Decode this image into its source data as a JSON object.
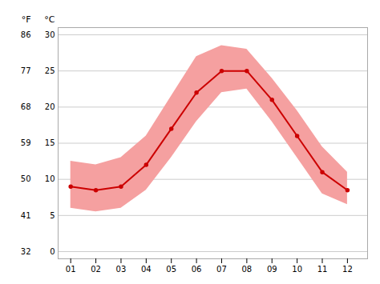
{
  "chart_data": {
    "type": "line",
    "x": [
      1,
      2,
      3,
      4,
      5,
      6,
      7,
      8,
      9,
      10,
      11,
      12
    ],
    "xlim": [
      0.5,
      12.8
    ],
    "xticks": [
      {
        "value": 1,
        "label": "01"
      },
      {
        "value": 2,
        "label": "02"
      },
      {
        "value": 3,
        "label": "03"
      },
      {
        "value": 4,
        "label": "04"
      },
      {
        "value": 5,
        "label": "05"
      },
      {
        "value": 6,
        "label": "06"
      },
      {
        "value": 7,
        "label": "07"
      },
      {
        "value": 8,
        "label": "08"
      },
      {
        "value": 9,
        "label": "09"
      },
      {
        "value": 10,
        "label": "10"
      },
      {
        "value": 11,
        "label": "11"
      },
      {
        "value": 12,
        "label": "12"
      }
    ],
    "ylim": [
      -1,
      31
    ],
    "yticks": [
      0,
      5,
      10,
      15,
      20,
      25,
      30
    ],
    "ylabel": "°C",
    "y2lim": [
      30.2,
      87.8
    ],
    "y2ticks": [
      32,
      41,
      50,
      59,
      68,
      77,
      86
    ],
    "y2label": "°F",
    "grid": "y",
    "series": [
      {
        "type": "area",
        "color": "#f5a0a0",
        "lower": [
          6.0,
          5.5,
          6.0,
          8.5,
          13.0,
          18.0,
          22.0,
          22.5,
          18.0,
          13.0,
          8.0,
          6.5
        ],
        "upper": [
          12.5,
          12.0,
          13.0,
          16.0,
          21.5,
          27.0,
          28.5,
          28.0,
          24.0,
          19.5,
          14.5,
          11.0
        ]
      },
      {
        "type": "line",
        "color": "#cc0000",
        "marker": "o",
        "values": [
          9.0,
          8.5,
          9.0,
          12.0,
          17.0,
          22.0,
          25.0,
          25.0,
          21.0,
          16.0,
          11.0,
          8.5
        ]
      }
    ]
  }
}
